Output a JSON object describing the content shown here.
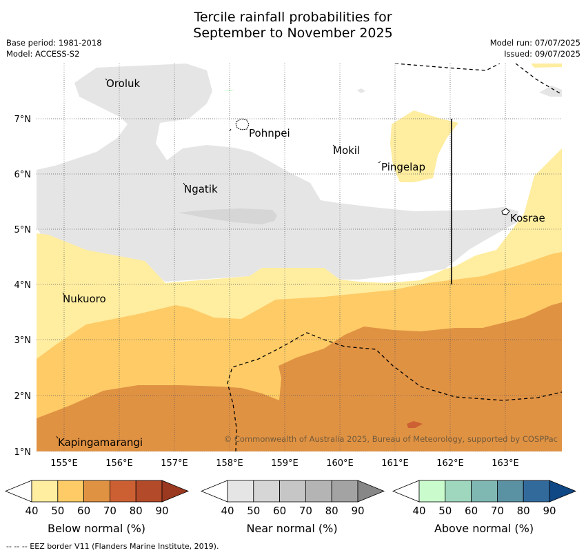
{
  "title_line1": "Tercile rainfall probabilities for",
  "title_line2": "September to November 2025",
  "base_period": "Base period: 1981-2018",
  "model": "Model: ACCESS-S2",
  "model_run": "Model run: 07/07/2025",
  "issued": "Issued: 09/07/2025",
  "map": {
    "lon_ticks": [
      "155°E",
      "156°E",
      "157°E",
      "158°E",
      "159°E",
      "160°E",
      "161°E",
      "162°E",
      "163°E"
    ],
    "lat_ticks": [
      "7°N",
      "6°N",
      "5°N",
      "4°N",
      "3°N",
      "2°N",
      "1°N"
    ],
    "places": [
      {
        "name": "Oroluk"
      },
      {
        "name": "Pohnpei"
      },
      {
        "name": "Mokil"
      },
      {
        "name": "Pingelap"
      },
      {
        "name": "Ngatik"
      },
      {
        "name": "Kosrae"
      },
      {
        "name": "Nukuoro"
      },
      {
        "name": "Kapingamarangi"
      }
    ],
    "copyright": "© Commonwealth of Australia 2025, Bureau of Meteorology, supported by COSPPac"
  },
  "colorbars": [
    {
      "label": "Below normal (%)",
      "ticks": [
        "40",
        "50",
        "60",
        "70",
        "80",
        "90"
      ],
      "colors": [
        "#ffffff",
        "#ffeda0",
        "#fecb66",
        "#e09243",
        "#cc6033",
        "#b34a29",
        "#9a3820"
      ]
    },
    {
      "label": "Near normal (%)",
      "ticks": [
        "40",
        "50",
        "60",
        "70",
        "80",
        "90"
      ],
      "colors": [
        "#ffffff",
        "#e5e5e5",
        "#d6d6d6",
        "#c6c6c6",
        "#b4b4b4",
        "#a3a3a3",
        "#878787"
      ]
    },
    {
      "label": "Above normal (%)",
      "ticks": [
        "40",
        "50",
        "60",
        "70",
        "80",
        "90"
      ],
      "colors": [
        "#ffffff",
        "#c9fbcc",
        "#9fd6be",
        "#7fb7b2",
        "#5b92a3",
        "#336a9c",
        "#104785"
      ]
    }
  ],
  "footnote": "--  --  -- EEZ border V11 (Flanders Marine Institute, 2019).",
  "colors": {
    "below_50": "#ffeda0",
    "below_60": "#fecb66",
    "below_70": "#e09243",
    "below_80": "#cc6033",
    "near_50": "#e5e5e5",
    "near_60": "#d6d6d6",
    "above_50": "#c9fbcc"
  }
}
